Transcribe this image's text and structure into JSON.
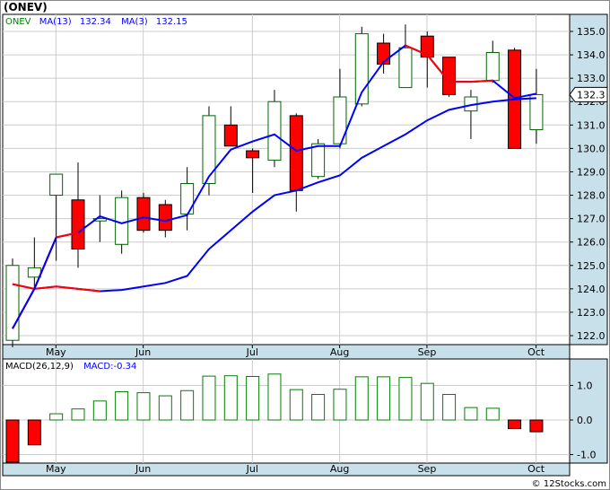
{
  "header": {
    "ticker": "(ONEV)"
  },
  "legend": {
    "symbol": "ONEV",
    "ma13": "MA(13)",
    "ma13_value": "132.34",
    "ma3": "MA(3)",
    "ma3_value": "132.15",
    "macd": "MACD(26,12,9)",
    "macd_value_label": "MACD:-0.34"
  },
  "current_price_label": "132.3",
  "footer": "© 12Stocks.com",
  "colors": {
    "up": "#ffffff",
    "down": "#ff0000",
    "hist": "#008000",
    "ma_fast": "#ff0000",
    "ma_slow": "#0000ff",
    "axis_bg": "#c8e0ea",
    "grid": "#cccccc"
  },
  "chart_data": [
    {
      "type": "candlestick",
      "x_labels": [
        "May",
        "Jun",
        "Jul",
        "Aug",
        "Sep",
        "Oct"
      ],
      "label_positions": [
        1,
        5,
        10,
        14,
        18,
        23
      ],
      "yticks": [
        122.0,
        123.0,
        124.0,
        125.0,
        126.0,
        127.0,
        128.0,
        129.0,
        130.0,
        131.0,
        132.0,
        133.0,
        134.0,
        135.0
      ],
      "ylim": [
        121.5,
        135.6
      ],
      "ohlc": [
        {
          "o": 121.8,
          "h": 125.3,
          "l": 121.5,
          "c": 125.0
        },
        {
          "o": 124.5,
          "h": 126.2,
          "l": 124.0,
          "c": 124.9
        },
        {
          "o": 128.0,
          "h": 128.8,
          "l": 125.2,
          "c": 128.9
        },
        {
          "o": 127.8,
          "h": 129.4,
          "l": 124.9,
          "c": 125.7
        },
        {
          "o": 126.9,
          "h": 128.0,
          "l": 126.0,
          "c": 127.0
        },
        {
          "o": 125.9,
          "h": 128.2,
          "l": 125.5,
          "c": 127.9
        },
        {
          "o": 127.9,
          "h": 128.1,
          "l": 126.4,
          "c": 126.5
        },
        {
          "o": 127.6,
          "h": 127.8,
          "l": 126.2,
          "c": 126.5
        },
        {
          "o": 127.2,
          "h": 129.2,
          "l": 126.5,
          "c": 128.5
        },
        {
          "o": 128.5,
          "h": 131.8,
          "l": 128.0,
          "c": 131.4
        },
        {
          "o": 131.0,
          "h": 131.8,
          "l": 130.1,
          "c": 130.1
        },
        {
          "o": 129.9,
          "h": 130.0,
          "l": 128.1,
          "c": 129.6
        },
        {
          "o": 129.5,
          "h": 132.5,
          "l": 129.2,
          "c": 132.0
        },
        {
          "o": 131.4,
          "h": 131.5,
          "l": 127.3,
          "c": 128.2
        },
        {
          "o": 128.8,
          "h": 130.4,
          "l": 128.7,
          "c": 130.2
        },
        {
          "o": 130.2,
          "h": 133.4,
          "l": 130.0,
          "c": 132.2
        },
        {
          "o": 131.9,
          "h": 135.2,
          "l": 131.8,
          "c": 134.9
        },
        {
          "o": 134.5,
          "h": 134.9,
          "l": 133.2,
          "c": 133.6
        },
        {
          "o": 132.6,
          "h": 135.3,
          "l": 132.6,
          "c": 134.3
        },
        {
          "o": 134.8,
          "h": 135.0,
          "l": 132.6,
          "c": 133.9
        },
        {
          "o": 133.9,
          "h": 133.9,
          "l": 132.2,
          "c": 132.3
        },
        {
          "o": 131.6,
          "h": 132.5,
          "l": 130.4,
          "c": 132.2
        },
        {
          "o": 132.9,
          "h": 134.6,
          "l": 132.8,
          "c": 134.1
        },
        {
          "o": 134.2,
          "h": 134.3,
          "l": 130.0,
          "c": 130.0
        },
        {
          "o": 130.8,
          "h": 133.4,
          "l": 130.2,
          "c": 132.3
        }
      ],
      "ma_fast": [
        124.2,
        124.0,
        124.1,
        124.0,
        123.9,
        123.95,
        124.1,
        124.25,
        124.55,
        125.7,
        126.5,
        127.3,
        128.0,
        128.2,
        128.55,
        128.85,
        129.6,
        130.1,
        130.6,
        131.2,
        131.65,
        131.85,
        132.0,
        132.1,
        132.15
      ],
      "ma_slow": [
        122.3,
        124.0,
        126.2,
        126.4,
        127.1,
        126.8,
        127.05,
        126.9,
        127.15,
        128.8,
        129.95,
        130.3,
        130.6,
        129.9,
        130.1,
        130.1,
        132.4,
        133.7,
        134.4,
        134.0,
        132.85,
        132.85,
        132.9,
        132.15,
        132.34
      ],
      "ma_slow_red_segments": [
        [
          0,
          3
        ],
        [
          18,
          22
        ]
      ]
    },
    {
      "type": "bar",
      "name": "MACD(26,12,9)",
      "yticks": [
        -1.0,
        0.0,
        1.0
      ],
      "ylim": [
        -1.3,
        1.7
      ],
      "values": [
        -1.35,
        -0.72,
        0.18,
        0.32,
        0.55,
        0.82,
        0.79,
        0.7,
        0.85,
        1.27,
        1.28,
        1.26,
        1.33,
        0.88,
        0.74,
        0.89,
        1.25,
        1.25,
        1.23,
        1.06,
        0.74,
        0.36,
        0.34,
        -0.25,
        -0.34
      ]
    }
  ]
}
